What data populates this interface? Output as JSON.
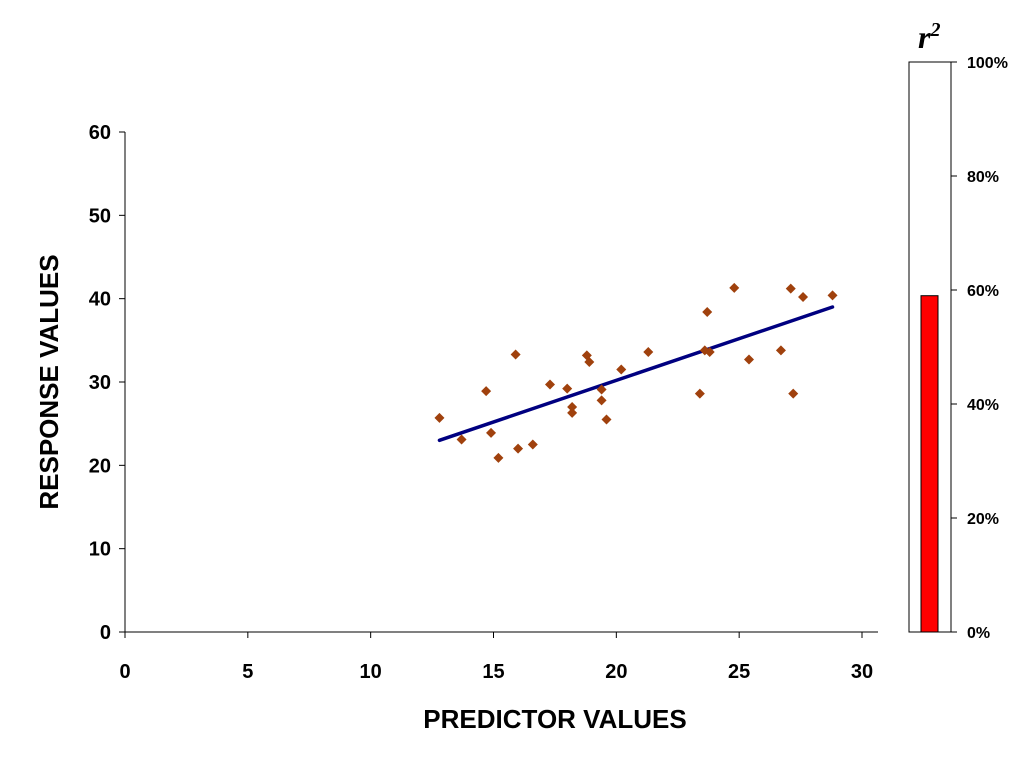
{
  "chart_data": [
    {
      "type": "scatter",
      "xlabel": "PREDICTOR VALUES",
      "ylabel": "RESPONSE VALUES",
      "xlim": [
        0,
        30
      ],
      "ylim": [
        0,
        60
      ],
      "x_ticks": [
        "0",
        "5",
        "10",
        "15",
        "20",
        "25",
        "30"
      ],
      "y_ticks": [
        "0",
        "10",
        "20",
        "30",
        "40",
        "50",
        "60"
      ],
      "grid": false,
      "marker_color": "#A0410D",
      "trendline_color": "#000080",
      "points": [
        [
          12.8,
          25.7
        ],
        [
          13.7,
          23.1
        ],
        [
          14.7,
          28.9
        ],
        [
          14.9,
          23.9
        ],
        [
          15.2,
          20.9
        ],
        [
          15.9,
          33.3
        ],
        [
          16.0,
          22.0
        ],
        [
          16.6,
          22.5
        ],
        [
          17.3,
          29.7
        ],
        [
          18.0,
          29.2
        ],
        [
          18.2,
          26.3
        ],
        [
          18.2,
          27.0
        ],
        [
          18.8,
          33.2
        ],
        [
          18.9,
          32.4
        ],
        [
          19.4,
          29.1
        ],
        [
          19.4,
          27.8
        ],
        [
          19.6,
          25.5
        ],
        [
          20.2,
          31.5
        ],
        [
          21.3,
          33.6
        ],
        [
          23.4,
          28.6
        ],
        [
          23.6,
          33.8
        ],
        [
          23.7,
          38.4
        ],
        [
          23.8,
          33.6
        ],
        [
          24.8,
          41.3
        ],
        [
          25.4,
          32.7
        ],
        [
          26.7,
          33.8
        ],
        [
          27.1,
          41.2
        ],
        [
          27.2,
          28.6
        ],
        [
          27.6,
          40.2
        ],
        [
          28.8,
          40.4
        ]
      ],
      "trendline": {
        "x": [
          12.8,
          28.8
        ],
        "y": [
          23.0,
          39.0
        ]
      }
    },
    {
      "type": "bar",
      "title": "r2",
      "title_main": "r",
      "title_superscript": "2",
      "categories": [
        ""
      ],
      "values": [
        0.59
      ],
      "ylim": [
        0,
        1
      ],
      "y_ticks": [
        "0%",
        "20%",
        "40%",
        "60%",
        "80%",
        "100%"
      ],
      "bar_color": "#FF0000"
    }
  ]
}
